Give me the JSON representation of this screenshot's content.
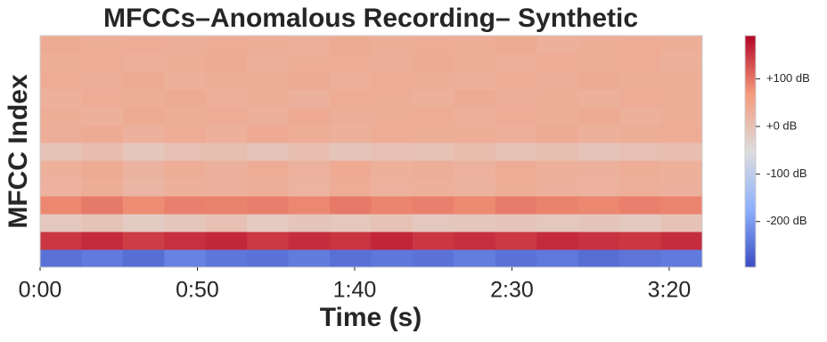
{
  "chart_data": {
    "type": "heatmap",
    "title": "MFCCs–Anomalous Recording– Synthetic",
    "x_label": "Time (s)",
    "y_label": "MFCC Index",
    "xlim": [
      0,
      210.5
    ],
    "xticks": [
      {
        "value": 0,
        "label": "0:00"
      },
      {
        "value": 50,
        "label": "0:50"
      },
      {
        "value": 100,
        "label": "1:40"
      },
      {
        "value": 150,
        "label": "2:30"
      },
      {
        "value": 200,
        "label": "3:20"
      }
    ],
    "zlim": [
      -296,
      191
    ],
    "zticks": [
      {
        "value": 100,
        "label": "+100 dB"
      },
      {
        "value": 0,
        "label": "+0 dB"
      },
      {
        "value": -100,
        "label": "-100 dB"
      },
      {
        "value": -200,
        "label": "-200 dB"
      }
    ],
    "colormap": "coolwarm",
    "z": [
      [
        -250,
        -240,
        -255,
        -230,
        -245,
        -250,
        -238,
        -252,
        -244,
        -248,
        -236,
        -250,
        -242,
        -255,
        -246,
        -240
      ],
      [
        150,
        160,
        145,
        155,
        162,
        148,
        158,
        152,
        165,
        150,
        156,
        148,
        160,
        154,
        150,
        158
      ],
      [
        -15,
        -5,
        -20,
        -10,
        0,
        -18,
        -8,
        -12,
        -3,
        -15,
        -10,
        -6,
        -14,
        -9,
        -16,
        -4
      ],
      [
        85,
        95,
        80,
        90,
        88,
        92,
        84,
        96,
        86,
        90,
        82,
        94,
        88,
        85,
        91,
        87
      ],
      [
        25,
        35,
        20,
        30,
        28,
        32,
        22,
        36,
        26,
        30,
        24,
        34,
        28,
        25,
        31,
        27
      ],
      [
        30,
        38,
        24,
        34,
        28,
        36,
        26,
        40,
        30,
        32,
        26,
        36,
        30,
        28,
        34,
        30
      ],
      [
        -5,
        5,
        -10,
        0,
        2,
        -6,
        4,
        -8,
        0,
        -2,
        6,
        -4,
        2,
        -6,
        0,
        3
      ],
      [
        32,
        38,
        28,
        36,
        30,
        40,
        34,
        29,
        37,
        33,
        35,
        31,
        38,
        30,
        34,
        36
      ],
      [
        35,
        30,
        38,
        33,
        36,
        29,
        40,
        32,
        34,
        37,
        31,
        36,
        33,
        38,
        30,
        35
      ],
      [
        30,
        36,
        33,
        39,
        31,
        35,
        28,
        37,
        34,
        30,
        38,
        32,
        35,
        29,
        36,
        33
      ],
      [
        36,
        32,
        38,
        30,
        35,
        33,
        39,
        31,
        37,
        34,
        30,
        36,
        32,
        38,
        33,
        35
      ],
      [
        33,
        37,
        31,
        35,
        38,
        30,
        34,
        36,
        32,
        39,
        35,
        31,
        37,
        33,
        36,
        30
      ],
      [
        38,
        34,
        36,
        32,
        37,
        35,
        31,
        39,
        33,
        36,
        34,
        38,
        30,
        35,
        37,
        33
      ]
    ]
  }
}
